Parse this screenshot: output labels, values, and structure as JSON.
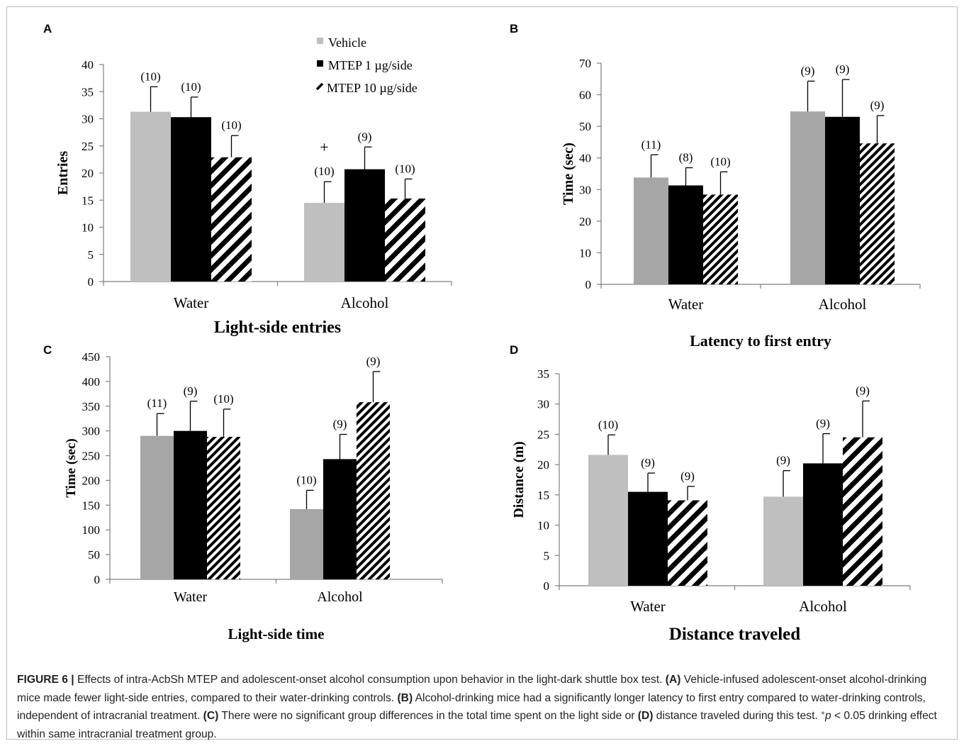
{
  "chart_data": [
    {
      "panel": "A",
      "type": "bar",
      "title": "Light-side entries",
      "ylabel": "Entries",
      "ylim": [
        0,
        40
      ],
      "yticks": [
        0,
        5,
        10,
        15,
        20,
        25,
        30,
        35,
        40
      ],
      "categories": [
        "Water",
        "Alcohol"
      ],
      "legend_position": "top",
      "series": [
        {
          "name": "Vehicle",
          "values": [
            31.3,
            14.5
          ],
          "errors": [
            4.6,
            3.9
          ],
          "n_labels": [
            "(10)",
            "(10)"
          ]
        },
        {
          "name": "MTEP 1 µg/side",
          "values": [
            30.3,
            20.7
          ],
          "errors": [
            3.7,
            4.1
          ],
          "n_labels": [
            "(10)",
            "(9)"
          ]
        },
        {
          "name": "MTEP 10 µg/side",
          "values": [
            22.9,
            15.3
          ],
          "errors": [
            4.0,
            3.6
          ],
          "n_labels": [
            "(10)",
            "(10)"
          ]
        }
      ],
      "annotation": "+"
    },
    {
      "panel": "B",
      "type": "bar",
      "title": "Latency to first entry",
      "ylabel": "Time (sec)",
      "ylim": [
        0,
        70
      ],
      "yticks": [
        0,
        10,
        20,
        30,
        40,
        50,
        60,
        70
      ],
      "categories": [
        "Water",
        "Alcohol"
      ],
      "series": [
        {
          "values": [
            33.8,
            54.7
          ],
          "errors": [
            7.2,
            9.6
          ],
          "n_labels": [
            "(11)",
            "(9)"
          ]
        },
        {
          "values": [
            31.3,
            53.0
          ],
          "errors": [
            5.6,
            11.8
          ],
          "n_labels": [
            "(8)",
            "(9)"
          ]
        },
        {
          "values": [
            28.4,
            44.6
          ],
          "errors": [
            7.2,
            8.8
          ],
          "n_labels": [
            "(10)",
            "(9)"
          ]
        }
      ]
    },
    {
      "panel": "C",
      "type": "bar",
      "title": "Light-side time",
      "ylabel": "Time (sec)",
      "ylim": [
        0,
        450
      ],
      "yticks": [
        0,
        50,
        100,
        150,
        200,
        250,
        300,
        350,
        400,
        450
      ],
      "categories": [
        "Water",
        "Alcohol"
      ],
      "series": [
        {
          "values": [
            290,
            142
          ],
          "errors": [
            45,
            38
          ],
          "n_labels": [
            "(11)",
            "(10)"
          ]
        },
        {
          "values": [
            300,
            243
          ],
          "errors": [
            60,
            50
          ],
          "n_labels": [
            "(9)",
            "(9)"
          ]
        },
        {
          "values": [
            288,
            358
          ],
          "errors": [
            56,
            62
          ],
          "n_labels": [
            "(10)",
            "(9)"
          ]
        }
      ]
    },
    {
      "panel": "D",
      "type": "bar",
      "title": "Distance traveled",
      "ylabel": "Distance (m)",
      "ylim": [
        0,
        35
      ],
      "yticks": [
        0,
        5,
        10,
        15,
        20,
        25,
        30,
        35
      ],
      "categories": [
        "Water",
        "Alcohol"
      ],
      "series": [
        {
          "values": [
            21.6,
            14.7
          ],
          "errors": [
            3.3,
            4.3
          ],
          "n_labels": [
            "(10)",
            "(9)"
          ]
        },
        {
          "values": [
            15.5,
            20.2
          ],
          "errors": [
            3.1,
            4.9
          ],
          "n_labels": [
            "(9)",
            "(9)"
          ]
        },
        {
          "values": [
            14.1,
            24.5
          ],
          "errors": [
            2.3,
            6.0
          ],
          "n_labels": [
            "(9)",
            "(9)"
          ]
        }
      ]
    }
  ],
  "caption": {
    "label": "FIGURE 6 |",
    "text_1": " Effects of intra-AcbSh MTEP and adolescent-onset alcohol consumption upon behavior in the light-dark shuttle box test. ",
    "ref_a": "(A)",
    "text_2": " Vehicle-infused adolescent-onset alcohol-drinking mice made fewer light-side entries, compared to their water-drinking controls. ",
    "ref_b": "(B)",
    "text_3": " Alcohol-drinking mice had a significantly longer latency to first entry compared to water-drinking controls, independent of intracranial treatment. ",
    "ref_c": "(C)",
    "text_4": " There were no significant group differences in the total time spent on the light side or ",
    "ref_d": "(D)",
    "text_5": " distance traveled during this test. ",
    "sup": "+",
    "p_symbol": "p",
    "text_6": " < 0.05 drinking effect within same intracranial treatment group."
  },
  "colors": {
    "vehicle_a_d": "#bfbfbf",
    "vehicle_b_c": "#a6a6a6",
    "mtep_1": "#000000",
    "axis": "#7f7f7f",
    "text": "#000000"
  }
}
